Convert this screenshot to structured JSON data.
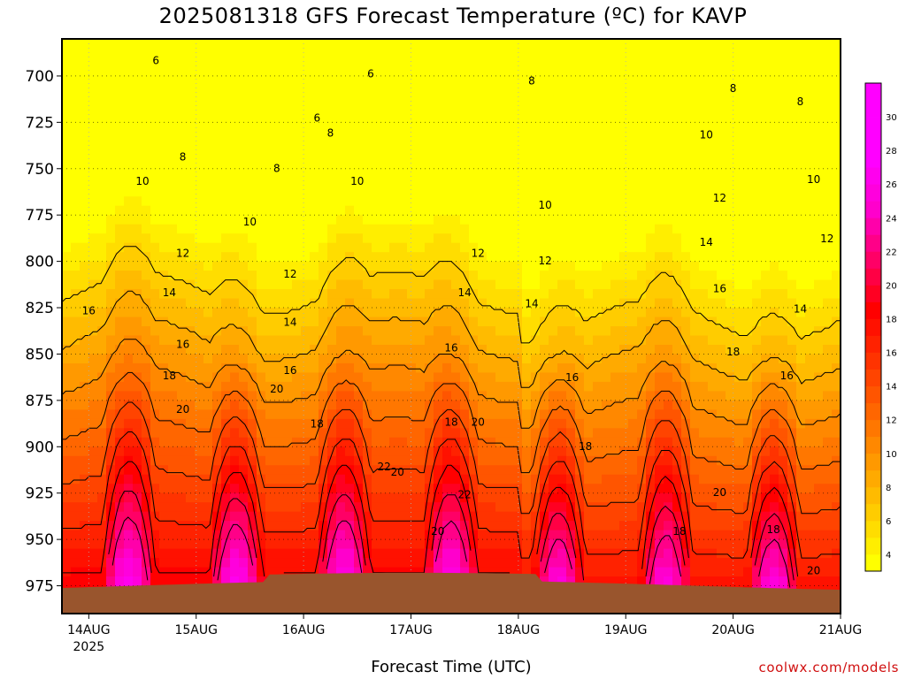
{
  "title": "2025081318 GFS Forecast Temperature (ºC) for KAVP",
  "xlabel": "Forecast Time (UTC)",
  "credit": "coolwx.com/models",
  "colors": {
    "ground": "#99552d",
    "grid": "#b0b0b0",
    "contour": "#000000"
  },
  "chart_data": {
    "type": "heatmap",
    "title": "2025081318 GFS Forecast Temperature (ºC) for KAVP",
    "xlabel": "Forecast Time (UTC)",
    "ylabel": "",
    "y_axis": {
      "ticks": [
        700,
        725,
        750,
        775,
        800,
        825,
        850,
        875,
        900,
        925,
        950,
        975
      ],
      "range": [
        680,
        990
      ],
      "inverted": true
    },
    "x_axis": {
      "ticks": [
        "14AUG",
        "15AUG",
        "16AUG",
        "17AUG",
        "18AUG",
        "19AUG",
        "20AUG",
        "21AUG"
      ],
      "first_tick_sublabel": "2025",
      "range_hours": [
        -6,
        168
      ]
    },
    "colorbar": {
      "labels": [
        "4",
        "6",
        "8",
        "10",
        "12",
        "14",
        "16",
        "18",
        "20",
        "22",
        "24",
        "26",
        "28",
        "30"
      ],
      "levels": [
        3,
        4,
        5,
        6,
        7,
        8,
        9,
        10,
        11,
        12,
        13,
        14,
        15,
        16,
        17,
        18,
        19,
        20,
        21,
        22,
        23,
        24,
        25,
        26,
        27,
        28,
        29,
        30,
        31,
        32
      ],
      "colors": [
        "#ffff00",
        "#ffee00",
        "#ffdd00",
        "#ffcc00",
        "#ffbb00",
        "#ffaa00",
        "#ff9900",
        "#ff8800",
        "#ff7700",
        "#ff6600",
        "#ff5500",
        "#ff4400",
        "#ff3300",
        "#ff2200",
        "#ff1100",
        "#ff0000",
        "#ff0022",
        "#ff0044",
        "#ff0066",
        "#ff0088",
        "#ff00aa",
        "#ff00cc",
        "#ff00dd",
        "#ff00ee",
        "#ff00ff",
        "#ff00ff",
        "#ff00ff",
        "#ff00ff",
        "#ff00ff"
      ]
    },
    "contours": [
      6,
      8,
      10,
      12,
      14,
      16,
      18,
      20,
      22
    ],
    "contour_labels": [
      {
        "value": "6",
        "hour": 15,
        "p": 692
      },
      {
        "value": "6",
        "hour": 63,
        "p": 699
      },
      {
        "value": "6",
        "hour": 51,
        "p": 723
      },
      {
        "value": "8",
        "hour": 21,
        "p": 744
      },
      {
        "value": "8",
        "hour": 42,
        "p": 750
      },
      {
        "value": "8",
        "hour": 54,
        "p": 731
      },
      {
        "value": "8",
        "hour": 99,
        "p": 703
      },
      {
        "value": "8",
        "hour": 144,
        "p": 707
      },
      {
        "value": "8",
        "hour": 159,
        "p": 714
      },
      {
        "value": "10",
        "hour": 12,
        "p": 757
      },
      {
        "value": "10",
        "hour": 36,
        "p": 779
      },
      {
        "value": "10",
        "hour": 60,
        "p": 757
      },
      {
        "value": "10",
        "hour": 102,
        "p": 770
      },
      {
        "value": "10",
        "hour": 138,
        "p": 732
      },
      {
        "value": "10",
        "hour": 162,
        "p": 756
      },
      {
        "value": "12",
        "hour": 21,
        "p": 796
      },
      {
        "value": "12",
        "hour": 45,
        "p": 807
      },
      {
        "value": "12",
        "hour": 87,
        "p": 796
      },
      {
        "value": "12",
        "hour": 102,
        "p": 800
      },
      {
        "value": "12",
        "hour": 141,
        "p": 766
      },
      {
        "value": "12",
        "hour": 165,
        "p": 788
      },
      {
        "value": "14",
        "hour": 18,
        "p": 817
      },
      {
        "value": "14",
        "hour": 45,
        "p": 833
      },
      {
        "value": "14",
        "hour": 84,
        "p": 817
      },
      {
        "value": "14",
        "hour": 99,
        "p": 823
      },
      {
        "value": "14",
        "hour": 138,
        "p": 790
      },
      {
        "value": "14",
        "hour": 159,
        "p": 826
      },
      {
        "value": "16",
        "hour": 0,
        "p": 827
      },
      {
        "value": "16",
        "hour": 21,
        "p": 845
      },
      {
        "value": "16",
        "hour": 45,
        "p": 859
      },
      {
        "value": "16",
        "hour": 81,
        "p": 847
      },
      {
        "value": "16",
        "hour": 108,
        "p": 863
      },
      {
        "value": "16",
        "hour": 141,
        "p": 815
      },
      {
        "value": "16",
        "hour": 156,
        "p": 862
      },
      {
        "value": "18",
        "hour": 18,
        "p": 862
      },
      {
        "value": "18",
        "hour": 51,
        "p": 888
      },
      {
        "value": "18",
        "hour": 81,
        "p": 887
      },
      {
        "value": "18",
        "hour": 144,
        "p": 849
      },
      {
        "value": "18",
        "hour": 111,
        "p": 900
      },
      {
        "value": "18",
        "hour": 132,
        "p": 946
      },
      {
        "value": "18",
        "hour": 153,
        "p": 945
      },
      {
        "value": "18",
        "hour": 168,
        "p": 966
      },
      {
        "value": "20",
        "hour": 21,
        "p": 880
      },
      {
        "value": "20",
        "hour": 42,
        "p": 869
      },
      {
        "value": "20",
        "hour": 87,
        "p": 887
      },
      {
        "value": "20",
        "hour": 69,
        "p": 914
      },
      {
        "value": "20",
        "hour": 78,
        "p": 946
      },
      {
        "value": "20",
        "hour": 141,
        "p": 925
      },
      {
        "value": "20",
        "hour": 162,
        "p": 967
      },
      {
        "value": "22",
        "hour": 66,
        "p": 911
      },
      {
        "value": "22",
        "hour": 84,
        "p": 926
      }
    ]
  }
}
